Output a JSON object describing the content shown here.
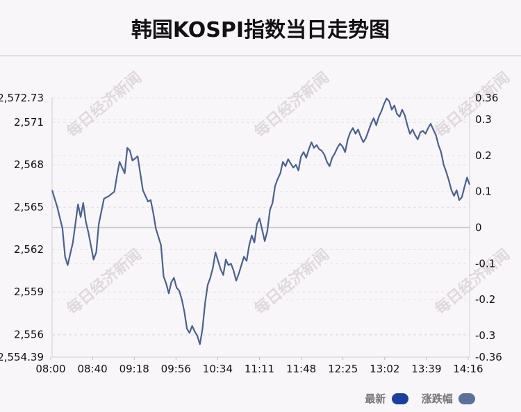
{
  "title": "韩国KOSPI指数当日走势图",
  "watermark": "每日经济新闻",
  "legend": [
    {
      "label": "最新",
      "color": "#1c3f9e"
    },
    {
      "label": "涨跌幅",
      "color": "#5a6f9a"
    }
  ],
  "chart_data": {
    "type": "line",
    "line_color": "#4a6190",
    "zero_line_color": "#c8c8c8",
    "grid": "dashed horizontal",
    "x_ticks": [
      "08:00",
      "08:40",
      "09:18",
      "09:56",
      "10:34",
      "11:11",
      "11:48",
      "12:25",
      "13:02",
      "13:39",
      "14:16"
    ],
    "y_left_ticks": [
      "2,572.73",
      "2,571",
      "2,568",
      "2,565",
      "2,562",
      "2,559",
      "2,556",
      "2,554.39"
    ],
    "y_left_values": [
      2572.73,
      2571,
      2568,
      2565,
      2562,
      2559,
      2556,
      2554.39
    ],
    "y_left_range": [
      2554.39,
      2572.73
    ],
    "y_right_ticks": [
      "0.36",
      "0.3",
      "0.2",
      "0.1",
      "0",
      "-0.1",
      "-0.2",
      "-0.3",
      "-0.36"
    ],
    "y_right_values": [
      0.36,
      0.3,
      0.2,
      0.1,
      0,
      -0.1,
      -0.2,
      -0.3,
      -0.36
    ],
    "y_right_range": [
      -0.36,
      0.36
    ],
    "series": [
      {
        "values": [
          [
            0,
            2566.2
          ],
          [
            2,
            2565.0
          ],
          [
            4,
            2563.5
          ],
          [
            5,
            2561.5
          ],
          [
            6,
            2560.9
          ],
          [
            8,
            2562.5
          ],
          [
            10,
            2565.2
          ],
          [
            11,
            2564.3
          ],
          [
            12,
            2565.3
          ],
          [
            13,
            2564.0
          ],
          [
            14,
            2563.2
          ],
          [
            16,
            2561.3
          ],
          [
            17,
            2561.8
          ],
          [
            18,
            2563.8
          ],
          [
            20,
            2565.6
          ],
          [
            22,
            2565.8
          ],
          [
            24,
            2566.1
          ],
          [
            25,
            2567.2
          ],
          [
            26,
            2568.2
          ],
          [
            28,
            2567.4
          ],
          [
            29,
            2569.2
          ],
          [
            30,
            2569.0
          ],
          [
            31,
            2568.3
          ],
          [
            33,
            2568.6
          ],
          [
            35,
            2566.2
          ],
          [
            37,
            2565.4
          ],
          [
            38,
            2565.5
          ],
          [
            39,
            2564.6
          ],
          [
            40,
            2563.5
          ],
          [
            42,
            2562.3
          ],
          [
            43,
            2560.1
          ],
          [
            44,
            2559.6
          ],
          [
            45,
            2558.9
          ],
          [
            46,
            2559.7
          ],
          [
            47,
            2560.0
          ],
          [
            48,
            2559.3
          ],
          [
            49,
            2559.1
          ],
          [
            50,
            2558.5
          ],
          [
            51,
            2557.6
          ],
          [
            52,
            2556.4
          ],
          [
            53,
            2556.1
          ],
          [
            54,
            2556.6
          ],
          [
            55,
            2556.2
          ],
          [
            56,
            2555.9
          ],
          [
            57,
            2555.3
          ],
          [
            58,
            2556.4
          ],
          [
            59,
            2558.2
          ],
          [
            60,
            2559.5
          ],
          [
            61,
            2560.0
          ],
          [
            62,
            2560.7
          ],
          [
            63,
            2561.8
          ],
          [
            64,
            2561.2
          ],
          [
            65,
            2560.6
          ],
          [
            66,
            2560.2
          ],
          [
            67,
            2561.3
          ],
          [
            68,
            2560.9
          ],
          [
            69,
            2561.0
          ],
          [
            70,
            2560.5
          ],
          [
            71,
            2559.8
          ],
          [
            72,
            2560.3
          ],
          [
            73,
            2560.9
          ],
          [
            74,
            2561.5
          ],
          [
            75,
            2561.2
          ],
          [
            76,
            2562.3
          ],
          [
            77,
            2563.0
          ],
          [
            78,
            2562.5
          ],
          [
            79,
            2563.8
          ],
          [
            80,
            2564.2
          ],
          [
            81,
            2563.4
          ],
          [
            82,
            2562.6
          ],
          [
            83,
            2563.3
          ],
          [
            84,
            2564.8
          ],
          [
            85,
            2565.3
          ],
          [
            86,
            2566.5
          ],
          [
            87,
            2567.0
          ],
          [
            88,
            2567.4
          ],
          [
            89,
            2568.2
          ],
          [
            90,
            2567.9
          ],
          [
            91,
            2568.4
          ],
          [
            92,
            2568.1
          ],
          [
            93,
            2567.8
          ],
          [
            94,
            2568.0
          ],
          [
            95,
            2567.6
          ],
          [
            96,
            2568.6
          ],
          [
            97,
            2568.9
          ],
          [
            98,
            2568.5
          ],
          [
            99,
            2569.1
          ],
          [
            100,
            2569.6
          ],
          [
            101,
            2569.2
          ],
          [
            102,
            2569.4
          ],
          [
            103,
            2569.1
          ],
          [
            104,
            2569.0
          ],
          [
            105,
            2568.7
          ],
          [
            106,
            2568.2
          ],
          [
            107,
            2567.9
          ],
          [
            108,
            2568.5
          ],
          [
            109,
            2568.8
          ],
          [
            110,
            2569.2
          ],
          [
            111,
            2569.5
          ],
          [
            112,
            2569.3
          ],
          [
            113,
            2568.9
          ],
          [
            114,
            2569.8
          ],
          [
            115,
            2570.3
          ],
          [
            116,
            2570.6
          ],
          [
            117,
            2570.2
          ],
          [
            118,
            2570.5
          ],
          [
            119,
            2570.0
          ],
          [
            120,
            2569.6
          ],
          [
            121,
            2569.9
          ],
          [
            122,
            2570.4
          ],
          [
            123,
            2570.9
          ],
          [
            124,
            2571.3
          ],
          [
            125,
            2570.8
          ],
          [
            126,
            2571.4
          ],
          [
            127,
            2571.8
          ],
          [
            128,
            2572.3
          ],
          [
            129,
            2572.7
          ],
          [
            130,
            2572.5
          ],
          [
            131,
            2571.9
          ],
          [
            132,
            2572.2
          ],
          [
            133,
            2571.6
          ],
          [
            134,
            2571.4
          ],
          [
            135,
            2571.9
          ],
          [
            136,
            2571.5
          ],
          [
            137,
            2570.8
          ],
          [
            138,
            2570.2
          ],
          [
            139,
            2570.5
          ],
          [
            140,
            2570.1
          ],
          [
            141,
            2569.8
          ],
          [
            142,
            2570.3
          ],
          [
            143,
            2570.4
          ],
          [
            144,
            2570.2
          ],
          [
            145,
            2570.6
          ],
          [
            146,
            2570.9
          ],
          [
            147,
            2570.5
          ],
          [
            148,
            2570.1
          ],
          [
            149,
            2569.4
          ],
          [
            150,
            2568.9
          ],
          [
            151,
            2568.0
          ],
          [
            152,
            2567.5
          ],
          [
            153,
            2566.9
          ],
          [
            154,
            2566.2
          ],
          [
            155,
            2565.8
          ],
          [
            156,
            2566.2
          ],
          [
            157,
            2565.5
          ],
          [
            158,
            2565.7
          ],
          [
            159,
            2566.4
          ],
          [
            160,
            2567.1
          ],
          [
            161,
            2566.6
          ]
        ]
      }
    ]
  }
}
